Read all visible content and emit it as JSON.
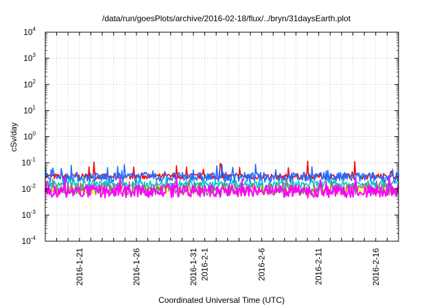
{
  "chart_data": {
    "type": "line",
    "title": "/data/run/goesPlots/archive/2016-02-18/flux/../bryn/31daysEarth.plot",
    "xlabel": "Coordinated Universal Time (UTC)",
    "ylabel": "cSv/day",
    "yscale": "log",
    "ylim": [
      0.0001,
      10000
    ],
    "y_ticks": [
      {
        "base": "10",
        "exp": "-4"
      },
      {
        "base": "10",
        "exp": "-3"
      },
      {
        "base": "10",
        "exp": "-2"
      },
      {
        "base": "10",
        "exp": "-1"
      },
      {
        "base": "10",
        "exp": "0"
      },
      {
        "base": "10",
        "exp": "1"
      },
      {
        "base": "10",
        "exp": "2"
      },
      {
        "base": "10",
        "exp": "3"
      },
      {
        "base": "10",
        "exp": "4"
      }
    ],
    "xlim": [
      "2016-01-18",
      "2016-02-18"
    ],
    "x_ticks": [
      "2016-1-21",
      "2016-1-26",
      "2016-1-31",
      "2016-2-1",
      "2016-2-6",
      "2016-2-11",
      "2016-2-16"
    ],
    "grid": true,
    "legend": "none",
    "series": [
      {
        "color": "#ff0000",
        "typical": 0.03,
        "low": 0.022,
        "high": 0.12
      },
      {
        "color": "#1e6eff",
        "typical": 0.028,
        "low": 0.016,
        "high": 0.09
      },
      {
        "color": "#00c8c8",
        "typical": 0.015,
        "low": 0.01,
        "high": 0.03
      },
      {
        "color": "#ffff00",
        "typical": 0.009,
        "low": 0.006,
        "high": 0.015
      },
      {
        "color": "#808080",
        "typical": 0.01,
        "low": 0.005,
        "high": 0.025
      },
      {
        "color": "#ff00ff",
        "typical": 0.008,
        "low": 0.004,
        "high": 0.03
      }
    ]
  }
}
